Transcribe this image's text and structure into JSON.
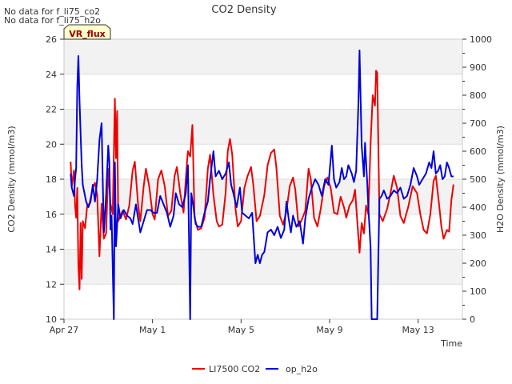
{
  "chart_data": {
    "type": "line",
    "title": "CO2 Density",
    "notes": [
      "No data for f_li75_co2",
      "No data for f_li75_h2o"
    ],
    "badge": "VR_flux",
    "xlabel": "Time",
    "ylabel_left": "CO2 Density (mmol/m3)",
    "ylabel_right": "H2O Density (mmol/m3)",
    "xlim": [
      0,
      18
    ],
    "ylim_left": [
      10,
      26
    ],
    "ylim_right": [
      0,
      1000
    ],
    "x_ticks": [
      {
        "x": 0,
        "label": "Apr 27"
      },
      {
        "x": 4,
        "label": "May 1"
      },
      {
        "x": 8,
        "label": "May 5"
      },
      {
        "x": 12,
        "label": "May 9"
      },
      {
        "x": 16,
        "label": "May 13"
      }
    ],
    "y_ticks_left": [
      10,
      12,
      14,
      16,
      18,
      20,
      22,
      24,
      26
    ],
    "y_ticks_right": [
      0,
      100,
      200,
      300,
      400,
      500,
      600,
      700,
      800,
      900,
      1000
    ],
    "band_pairs": [
      [
        12,
        14
      ],
      [
        16,
        18
      ],
      [
        20,
        22
      ],
      [
        24,
        26
      ]
    ],
    "series": [
      {
        "name": "LI7500 CO2",
        "color": "#ee0000",
        "axis": "left",
        "points": [
          [
            0.3,
            19.0
          ],
          [
            0.35,
            17.6
          ],
          [
            0.45,
            18.5
          ],
          [
            0.5,
            16.5
          ],
          [
            0.55,
            15.8
          ],
          [
            0.6,
            17.5
          ],
          [
            0.65,
            13.0
          ],
          [
            0.7,
            11.7
          ],
          [
            0.75,
            15.5
          ],
          [
            0.8,
            12.3
          ],
          [
            0.85,
            15.6
          ],
          [
            0.95,
            15.2
          ],
          [
            1.05,
            16.5
          ],
          [
            1.15,
            16.6
          ],
          [
            1.3,
            17.5
          ],
          [
            1.4,
            17.8
          ],
          [
            1.5,
            17.1
          ],
          [
            1.6,
            13.6
          ],
          [
            1.7,
            16.6
          ],
          [
            1.8,
            14.6
          ],
          [
            1.9,
            14.9
          ],
          [
            2.0,
            18.6
          ],
          [
            2.1,
            16.6
          ],
          [
            2.2,
            16.0
          ],
          [
            2.3,
            22.6
          ],
          [
            2.35,
            19.2
          ],
          [
            2.4,
            21.9
          ],
          [
            2.45,
            15.6
          ],
          [
            2.55,
            15.9
          ],
          [
            2.65,
            16.2
          ],
          [
            2.8,
            15.7
          ],
          [
            2.95,
            16.5
          ],
          [
            3.1,
            18.5
          ],
          [
            3.2,
            19.0
          ],
          [
            3.35,
            16.5
          ],
          [
            3.45,
            15.6
          ],
          [
            3.6,
            17.6
          ],
          [
            3.7,
            18.6
          ],
          [
            3.85,
            17.6
          ],
          [
            4.0,
            16.0
          ],
          [
            4.1,
            15.7
          ],
          [
            4.25,
            18.0
          ],
          [
            4.4,
            18.5
          ],
          [
            4.55,
            17.6
          ],
          [
            4.7,
            15.9
          ],
          [
            4.85,
            16.2
          ],
          [
            5.0,
            18.2
          ],
          [
            5.1,
            18.7
          ],
          [
            5.25,
            17.2
          ],
          [
            5.4,
            16.1
          ],
          [
            5.55,
            18.9
          ],
          [
            5.6,
            19.6
          ],
          [
            5.7,
            19.3
          ],
          [
            5.8,
            21.1
          ],
          [
            5.85,
            18.6
          ],
          [
            5.9,
            15.8
          ],
          [
            6.05,
            15.1
          ],
          [
            6.2,
            15.2
          ],
          [
            6.35,
            15.8
          ],
          [
            6.5,
            18.6
          ],
          [
            6.6,
            19.4
          ],
          [
            6.75,
            17.1
          ],
          [
            6.9,
            15.6
          ],
          [
            7.0,
            15.3
          ],
          [
            7.15,
            15.4
          ],
          [
            7.3,
            17.2
          ],
          [
            7.4,
            19.6
          ],
          [
            7.5,
            20.3
          ],
          [
            7.6,
            19.4
          ],
          [
            7.75,
            16.3
          ],
          [
            7.85,
            15.3
          ],
          [
            8.0,
            15.6
          ],
          [
            8.15,
            17.5
          ],
          [
            8.3,
            18.2
          ],
          [
            8.45,
            18.7
          ],
          [
            8.55,
            17.7
          ],
          [
            8.7,
            15.6
          ],
          [
            8.85,
            15.9
          ],
          [
            9.05,
            17.1
          ],
          [
            9.2,
            18.8
          ],
          [
            9.35,
            19.5
          ],
          [
            9.5,
            19.7
          ],
          [
            9.6,
            18.6
          ],
          [
            9.75,
            15.9
          ],
          [
            9.9,
            15.4
          ],
          [
            10.05,
            16.2
          ],
          [
            10.2,
            17.6
          ],
          [
            10.35,
            18.1
          ],
          [
            10.45,
            17.4
          ],
          [
            10.6,
            15.3
          ],
          [
            10.75,
            15.7
          ],
          [
            10.9,
            16.2
          ],
          [
            11.05,
            18.6
          ],
          [
            11.15,
            18.0
          ],
          [
            11.3,
            15.8
          ],
          [
            11.45,
            15.3
          ],
          [
            11.6,
            16.3
          ],
          [
            11.75,
            17.6
          ],
          [
            11.9,
            18.1
          ],
          [
            12.05,
            17.5
          ],
          [
            12.2,
            16.1
          ],
          [
            12.35,
            16.0
          ],
          [
            12.5,
            17.0
          ],
          [
            12.65,
            16.4
          ],
          [
            12.75,
            15.8
          ],
          [
            12.9,
            16.5
          ],
          [
            13.05,
            16.8
          ],
          [
            13.15,
            17.4
          ],
          [
            13.25,
            15.6
          ],
          [
            13.35,
            13.8
          ],
          [
            13.45,
            15.5
          ],
          [
            13.55,
            14.9
          ],
          [
            13.65,
            16.5
          ],
          [
            13.75,
            16.0
          ],
          [
            13.85,
            20.0
          ],
          [
            13.95,
            22.8
          ],
          [
            14.05,
            22.2
          ],
          [
            14.1,
            24.2
          ],
          [
            14.15,
            24.1
          ],
          [
            14.2,
            20.0
          ],
          [
            14.25,
            16.0
          ],
          [
            14.4,
            15.6
          ],
          [
            14.6,
            16.3
          ],
          [
            14.75,
            17.2
          ],
          [
            14.9,
            18.2
          ],
          [
            15.05,
            17.5
          ],
          [
            15.2,
            15.9
          ],
          [
            15.35,
            15.5
          ],
          [
            15.55,
            16.4
          ],
          [
            15.75,
            17.6
          ],
          [
            15.95,
            17.2
          ],
          [
            16.1,
            16.0
          ],
          [
            16.25,
            15.1
          ],
          [
            16.4,
            14.9
          ],
          [
            16.55,
            16.0
          ],
          [
            16.7,
            17.9
          ],
          [
            16.8,
            18.2
          ],
          [
            16.95,
            16.5
          ],
          [
            17.05,
            15.3
          ],
          [
            17.15,
            14.6
          ],
          [
            17.3,
            15.1
          ],
          [
            17.4,
            15.0
          ],
          [
            17.5,
            16.8
          ],
          [
            17.6,
            17.7
          ]
        ]
      },
      {
        "name": "op_h2o",
        "color": "#0000dd",
        "axis": "right",
        "points": [
          [
            0.3,
            520
          ],
          [
            0.35,
            470
          ],
          [
            0.45,
            440
          ],
          [
            0.5,
            500
          ],
          [
            0.55,
            540
          ],
          [
            0.6,
            830
          ],
          [
            0.65,
            940
          ],
          [
            0.7,
            780
          ],
          [
            0.75,
            660
          ],
          [
            0.8,
            550
          ],
          [
            0.85,
            480
          ],
          [
            0.95,
            440
          ],
          [
            1.0,
            420
          ],
          [
            1.1,
            400
          ],
          [
            1.2,
            420
          ],
          [
            1.3,
            480
          ],
          [
            1.4,
            420
          ],
          [
            1.5,
            500
          ],
          [
            1.6,
            640
          ],
          [
            1.7,
            700
          ],
          [
            1.75,
            500
          ],
          [
            1.8,
            310
          ],
          [
            1.9,
            440
          ],
          [
            2.0,
            620
          ],
          [
            2.05,
            560
          ],
          [
            2.1,
            320
          ],
          [
            2.15,
            370
          ],
          [
            2.25,
            0
          ],
          [
            2.3,
            560
          ],
          [
            2.35,
            260
          ],
          [
            2.45,
            410
          ],
          [
            2.55,
            360
          ],
          [
            2.7,
            390
          ],
          [
            2.85,
            370
          ],
          [
            3.0,
            360
          ],
          [
            3.1,
            340
          ],
          [
            3.25,
            410
          ],
          [
            3.45,
            310
          ],
          [
            3.6,
            350
          ],
          [
            3.75,
            390
          ],
          [
            3.9,
            390
          ],
          [
            4.05,
            380
          ],
          [
            4.2,
            380
          ],
          [
            4.35,
            440
          ],
          [
            4.5,
            410
          ],
          [
            4.65,
            380
          ],
          [
            4.8,
            330
          ],
          [
            4.95,
            370
          ],
          [
            5.05,
            450
          ],
          [
            5.2,
            410
          ],
          [
            5.35,
            400
          ],
          [
            5.5,
            450
          ],
          [
            5.6,
            550
          ],
          [
            5.65,
            280
          ],
          [
            5.7,
            0
          ],
          [
            5.75,
            450
          ],
          [
            5.85,
            400
          ],
          [
            5.95,
            340
          ],
          [
            6.05,
            330
          ],
          [
            6.2,
            330
          ],
          [
            6.35,
            380
          ],
          [
            6.5,
            420
          ],
          [
            6.6,
            500
          ],
          [
            6.75,
            600
          ],
          [
            6.85,
            510
          ],
          [
            7.0,
            530
          ],
          [
            7.15,
            500
          ],
          [
            7.3,
            520
          ],
          [
            7.45,
            560
          ],
          [
            7.55,
            480
          ],
          [
            7.65,
            450
          ],
          [
            7.8,
            400
          ],
          [
            7.95,
            470
          ],
          [
            8.05,
            380
          ],
          [
            8.2,
            370
          ],
          [
            8.35,
            360
          ],
          [
            8.5,
            380
          ],
          [
            8.6,
            260
          ],
          [
            8.65,
            200
          ],
          [
            8.75,
            230
          ],
          [
            8.85,
            200
          ],
          [
            8.95,
            230
          ],
          [
            9.05,
            240
          ],
          [
            9.2,
            310
          ],
          [
            9.35,
            320
          ],
          [
            9.5,
            300
          ],
          [
            9.65,
            330
          ],
          [
            9.8,
            290
          ],
          [
            9.95,
            320
          ],
          [
            10.05,
            420
          ],
          [
            10.15,
            360
          ],
          [
            10.25,
            310
          ],
          [
            10.35,
            370
          ],
          [
            10.5,
            330
          ],
          [
            10.65,
            350
          ],
          [
            10.8,
            270
          ],
          [
            10.9,
            360
          ],
          [
            11.05,
            430
          ],
          [
            11.2,
            470
          ],
          [
            11.35,
            500
          ],
          [
            11.5,
            480
          ],
          [
            11.65,
            440
          ],
          [
            11.8,
            500
          ],
          [
            11.95,
            480
          ],
          [
            12.1,
            620
          ],
          [
            12.2,
            500
          ],
          [
            12.3,
            470
          ],
          [
            12.45,
            490
          ],
          [
            12.55,
            540
          ],
          [
            12.65,
            500
          ],
          [
            12.75,
            510
          ],
          [
            12.85,
            550
          ],
          [
            13.0,
            520
          ],
          [
            13.1,
            490
          ],
          [
            13.2,
            530
          ],
          [
            13.3,
            770
          ],
          [
            13.35,
            960
          ],
          [
            13.45,
            620
          ],
          [
            13.55,
            510
          ],
          [
            13.6,
            630
          ],
          [
            13.7,
            490
          ],
          [
            13.75,
            400
          ],
          [
            13.85,
            260
          ],
          [
            13.9,
            0
          ],
          [
            13.95,
            0
          ],
          [
            14.05,
            0
          ],
          [
            14.15,
            0
          ],
          [
            14.25,
            430
          ],
          [
            14.35,
            440
          ],
          [
            14.45,
            460
          ],
          [
            14.6,
            430
          ],
          [
            14.75,
            440
          ],
          [
            14.9,
            460
          ],
          [
            15.05,
            450
          ],
          [
            15.2,
            470
          ],
          [
            15.35,
            430
          ],
          [
            15.5,
            440
          ],
          [
            15.65,
            480
          ],
          [
            15.8,
            540
          ],
          [
            15.95,
            510
          ],
          [
            16.05,
            480
          ],
          [
            16.2,
            500
          ],
          [
            16.35,
            520
          ],
          [
            16.5,
            560
          ],
          [
            16.6,
            540
          ],
          [
            16.7,
            600
          ],
          [
            16.8,
            520
          ],
          [
            16.9,
            530
          ],
          [
            17.0,
            550
          ],
          [
            17.1,
            500
          ],
          [
            17.2,
            510
          ],
          [
            17.3,
            560
          ],
          [
            17.4,
            540
          ],
          [
            17.5,
            510
          ],
          [
            17.6,
            510
          ]
        ]
      }
    ],
    "legend": [
      {
        "label": "LI7500 CO2",
        "color": "#ee0000"
      },
      {
        "label": "op_h2o",
        "color": "#0000dd"
      }
    ]
  }
}
